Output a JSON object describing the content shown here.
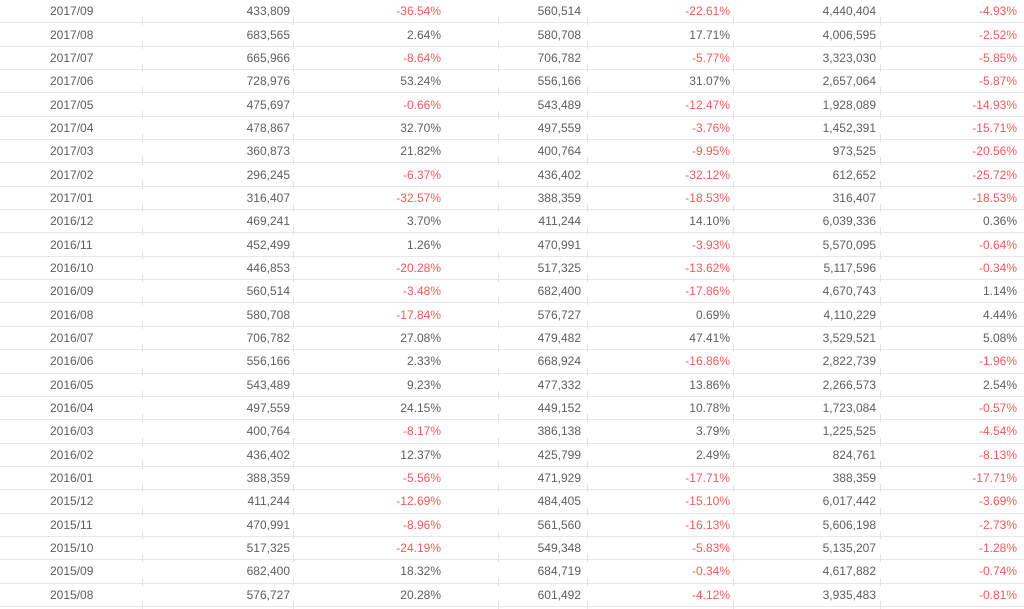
{
  "colors": {
    "background": "#ffffff",
    "row_border": "#e8e8e8",
    "text_default": "#5e5e5e",
    "percent_positive": "#5e5e5e",
    "percent_negative": "#f65959"
  },
  "table": {
    "columns": [
      "month",
      "value_1",
      "percent_1",
      "value_2",
      "percent_2",
      "value_3",
      "percent_3"
    ],
    "rows": [
      [
        "2017/09",
        "433,809",
        "-36.54%",
        "560,514",
        "-22.61%",
        "4,440,404",
        "-4.93%"
      ],
      [
        "2017/08",
        "683,565",
        "2.64%",
        "580,708",
        "17.71%",
        "4,006,595",
        "-2.52%"
      ],
      [
        "2017/07",
        "665,966",
        "-8.64%",
        "706,782",
        "-5.77%",
        "3,323,030",
        "-5.85%"
      ],
      [
        "2017/06",
        "728,976",
        "53.24%",
        "556,166",
        "31.07%",
        "2,657,064",
        "-5.87%"
      ],
      [
        "2017/05",
        "475,697",
        "-0.66%",
        "543,489",
        "-12.47%",
        "1,928,089",
        "-14.93%"
      ],
      [
        "2017/04",
        "478,867",
        "32.70%",
        "497,559",
        "-3.76%",
        "1,452,391",
        "-15.71%"
      ],
      [
        "2017/03",
        "360,873",
        "21.82%",
        "400,764",
        "-9.95%",
        "973,525",
        "-20.56%"
      ],
      [
        "2017/02",
        "296,245",
        "-6.37%",
        "436,402",
        "-32.12%",
        "612,652",
        "-25.72%"
      ],
      [
        "2017/01",
        "316,407",
        "-32.57%",
        "388,359",
        "-18.53%",
        "316,407",
        "-18.53%"
      ],
      [
        "2016/12",
        "469,241",
        "3.70%",
        "411,244",
        "14.10%",
        "6,039,336",
        "0.36%"
      ],
      [
        "2016/11",
        "452,499",
        "1.26%",
        "470,991",
        "-3.93%",
        "5,570,095",
        "-0.64%"
      ],
      [
        "2016/10",
        "446,853",
        "-20.28%",
        "517,325",
        "-13.62%",
        "5,117,596",
        "-0.34%"
      ],
      [
        "2016/09",
        "560,514",
        "-3.48%",
        "682,400",
        "-17.86%",
        "4,670,743",
        "1.14%"
      ],
      [
        "2016/08",
        "580,708",
        "-17.84%",
        "576,727",
        "0.69%",
        "4,110,229",
        "4.44%"
      ],
      [
        "2016/07",
        "706,782",
        "27.08%",
        "479,482",
        "47.41%",
        "3,529,521",
        "5.08%"
      ],
      [
        "2016/06",
        "556,166",
        "2.33%",
        "668,924",
        "-16.86%",
        "2,822,739",
        "-1.96%"
      ],
      [
        "2016/05",
        "543,489",
        "9.23%",
        "477,332",
        "13.86%",
        "2,266,573",
        "2.54%"
      ],
      [
        "2016/04",
        "497,559",
        "24.15%",
        "449,152",
        "10.78%",
        "1,723,084",
        "-0.57%"
      ],
      [
        "2016/03",
        "400,764",
        "-8.17%",
        "386,138",
        "3.79%",
        "1,225,525",
        "-4.54%"
      ],
      [
        "2016/02",
        "436,402",
        "12.37%",
        "425,799",
        "2.49%",
        "824,761",
        "-8.13%"
      ],
      [
        "2016/01",
        "388,359",
        "-5.56%",
        "471,929",
        "-17.71%",
        "388,359",
        "-17.71%"
      ],
      [
        "2015/12",
        "411,244",
        "-12.69%",
        "484,405",
        "-15.10%",
        "6,017,442",
        "-3.69%"
      ],
      [
        "2015/11",
        "470,991",
        "-8.96%",
        "561,560",
        "-16.13%",
        "5,606,198",
        "-2.73%"
      ],
      [
        "2015/10",
        "517,325",
        "-24.19%",
        "549,348",
        "-5.83%",
        "5,135,207",
        "-1.28%"
      ],
      [
        "2015/09",
        "682,400",
        "18.32%",
        "684,719",
        "-0.34%",
        "4,617,882",
        "-0.74%"
      ],
      [
        "2015/08",
        "576,727",
        "20.28%",
        "601,492",
        "-4.12%",
        "3,935,483",
        "-0.81%"
      ]
    ]
  }
}
